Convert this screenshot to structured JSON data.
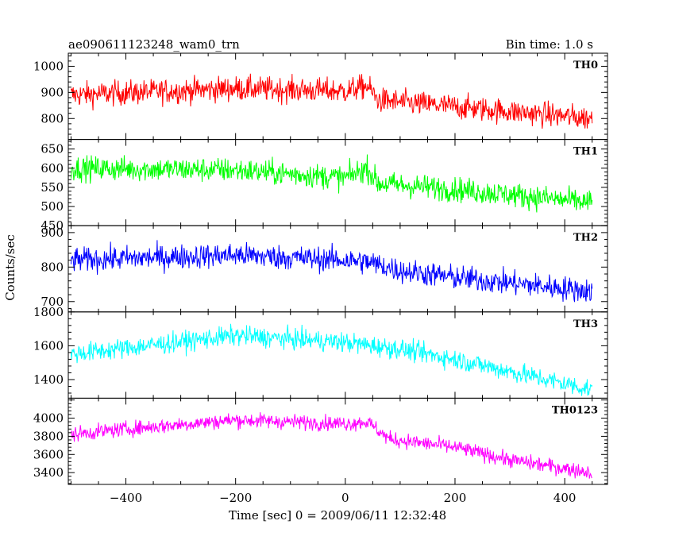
{
  "chart_data": {
    "type": "line",
    "title": "ae090611123248_wam0_trn",
    "bin_label": "Bin time: 1.0 s",
    "xlabel": "Time [sec] 0 = 2009/06/11 12:32:48",
    "ylabel": "Counts/sec",
    "xlim": [
      -505,
      478
    ],
    "x_ticks": [
      -400,
      -200,
      0,
      200,
      400
    ],
    "x_range_data": [
      -500,
      450
    ],
    "grid": false,
    "legend": "none",
    "panels": [
      {
        "name": "TH0",
        "color": "#ff0000",
        "ylim": [
          720,
          1050
        ],
        "y_ticks": [
          800,
          900,
          1000
        ],
        "trend": [
          [
            -500,
            890
          ],
          [
            -200,
            915
          ],
          [
            0,
            905
          ],
          [
            40,
            925
          ],
          [
            60,
            870
          ],
          [
            200,
            845
          ],
          [
            450,
            800
          ]
        ],
        "noise": 40
      },
      {
        "name": "TH1",
        "color": "#00ff00",
        "ylim": [
          450,
          675
        ],
        "y_ticks": [
          450,
          500,
          550,
          600,
          650
        ],
        "trend": [
          [
            -500,
            600
          ],
          [
            -200,
            595
          ],
          [
            0,
            575
          ],
          [
            40,
            600
          ],
          [
            60,
            560
          ],
          [
            200,
            545
          ],
          [
            450,
            510
          ]
        ],
        "noise": 27
      },
      {
        "name": "TH2",
        "color": "#0000ff",
        "ylim": [
          670,
          920
        ],
        "y_ticks": [
          700,
          800,
          900
        ],
        "trend": [
          [
            -500,
            820
          ],
          [
            -200,
            835
          ],
          [
            0,
            820
          ],
          [
            40,
            815
          ],
          [
            100,
            790
          ],
          [
            200,
            770
          ],
          [
            450,
            730
          ]
        ],
        "noise": 30
      },
      {
        "name": "TH3",
        "color": "#00ffff",
        "ylim": [
          1290,
          1800
        ],
        "y_ticks": [
          1400,
          1600,
          1800
        ],
        "trend": [
          [
            -500,
            1550
          ],
          [
            -200,
            1660
          ],
          [
            0,
            1620
          ],
          [
            100,
            1580
          ],
          [
            200,
            1520
          ],
          [
            450,
            1340
          ]
        ],
        "noise": 50
      },
      {
        "name": "TH0123",
        "color": "#ff00ff",
        "ylim": [
          3270,
          4220
        ],
        "y_ticks": [
          3400,
          3600,
          3800,
          4000
        ],
        "trend": [
          [
            -500,
            3820
          ],
          [
            -400,
            3880
          ],
          [
            -200,
            3980
          ],
          [
            0,
            3940
          ],
          [
            40,
            3960
          ],
          [
            80,
            3770
          ],
          [
            200,
            3680
          ],
          [
            300,
            3540
          ],
          [
            450,
            3400
          ]
        ],
        "noise": 70
      }
    ]
  }
}
